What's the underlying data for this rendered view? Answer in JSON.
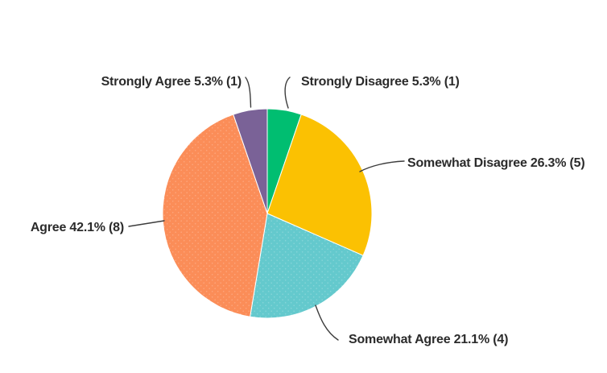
{
  "chart_data": {
    "type": "pie",
    "units": "percent",
    "direction": "clockwise",
    "start_angle_deg": 0,
    "legend": "none",
    "label_style": "callouts-with-leader-lines",
    "total_count": 19,
    "slices": [
      {
        "label": "Strongly Disagree",
        "percent": 5.3,
        "count": 1,
        "display": "Strongly Disagree 5.3% (1)",
        "color": "#00BE71",
        "texture": "none"
      },
      {
        "label": "Somewhat Disagree",
        "percent": 26.3,
        "count": 5,
        "display": "Somewhat Disagree 26.3% (5)",
        "color": "#FBC102",
        "texture": "none"
      },
      {
        "label": "Somewhat Agree",
        "percent": 21.1,
        "count": 4,
        "display": "Somewhat Agree 21.1% (4)",
        "color": "#64C9CD",
        "texture": "dots"
      },
      {
        "label": "Agree",
        "percent": 42.1,
        "count": 8,
        "display": "Agree 42.1% (8)",
        "color": "#FB8D58",
        "texture": "dots"
      },
      {
        "label": "Strongly Agree",
        "percent": 5.3,
        "count": 1,
        "display": "Strongly Agree 5.3% (1)",
        "color": "#7A6297",
        "texture": "none"
      }
    ]
  },
  "style": {
    "background": "#ffffff",
    "text_color": "#2B2B2B",
    "leader_line_color": "#3C3C3C",
    "slice_separator_color": "#ffffff"
  }
}
